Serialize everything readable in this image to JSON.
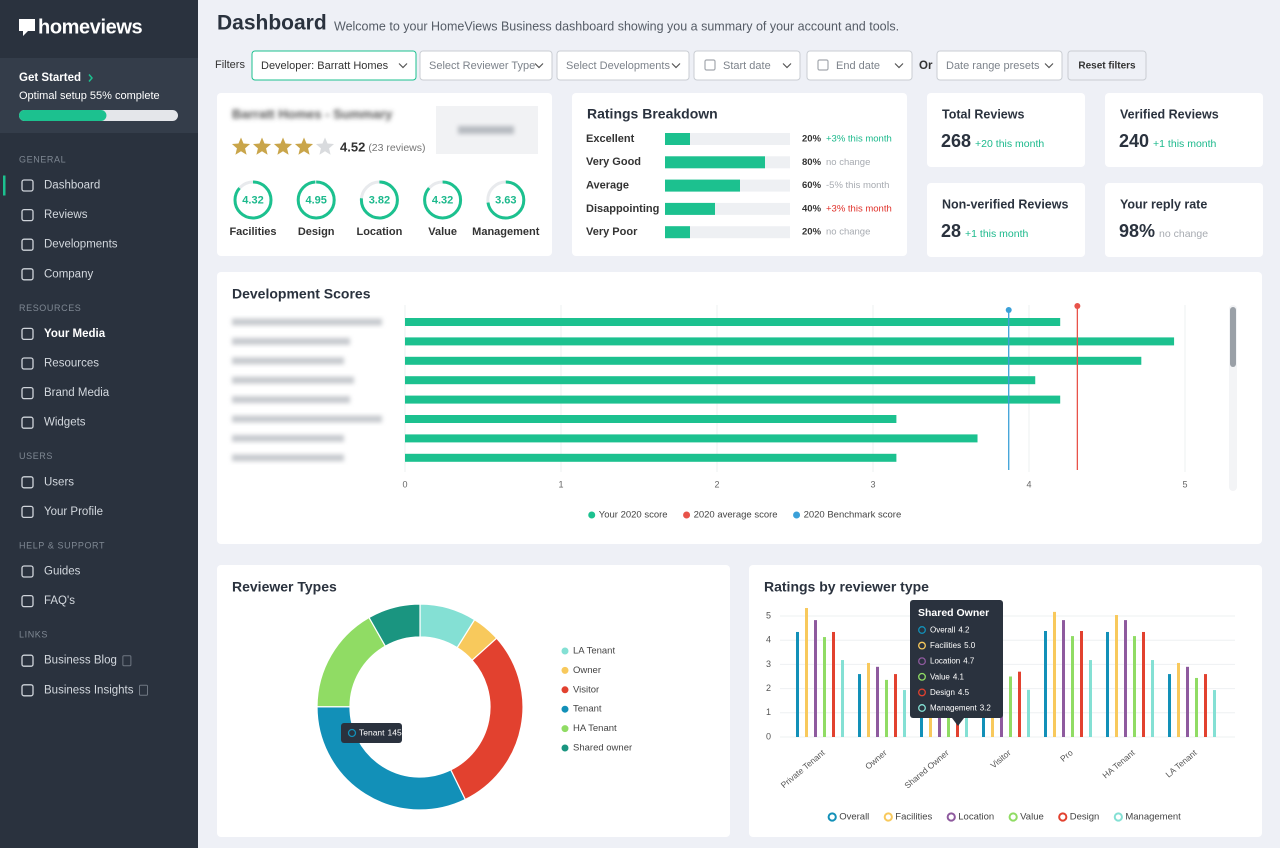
{
  "sidebar": {
    "brand": "homeviews",
    "get_started": {
      "title": "Get Started",
      "text": "Optimal setup 55% complete",
      "progress": 55
    },
    "sections": [
      {
        "title": "GENERAL",
        "items": [
          "Dashboard",
          "Reviews",
          "Developments",
          "Company"
        ]
      },
      {
        "title": "RESOURCES",
        "items": [
          "Your Media",
          "Resources",
          "Brand Media",
          "Widgets"
        ]
      },
      {
        "title": "USERS",
        "items": [
          "Users",
          "Your Profile"
        ]
      },
      {
        "title": "HELP & SUPPORT",
        "items": [
          "Guides",
          "FAQ's"
        ]
      },
      {
        "title": "LINKS",
        "items": [
          "Business Blog",
          "Business Insights"
        ]
      }
    ]
  },
  "header": {
    "title": "Dashboard",
    "subtitle": "Welcome to your HomeViews Business dashboard showing you a summary of your account and tools."
  },
  "filters": {
    "label": "Filters",
    "selects": [
      "Developer: Barratt Homes",
      "Select Reviewer Type",
      "Select Developments",
      "Start date",
      "End date"
    ],
    "or": "Or",
    "presets": "Date range presets",
    "reset": "Reset filters"
  },
  "summary": {
    "title": "Barratt Homes - Summary",
    "rating": 4.52,
    "reviews": "(23 reviews)",
    "scores": [
      {
        "label": "Facilities",
        "value": 4.32
      },
      {
        "label": "Design",
        "value": 4.95
      },
      {
        "label": "Location",
        "value": 3.82
      },
      {
        "label": "Value",
        "value": 4.32
      },
      {
        "label": "Management",
        "value": 3.63
      }
    ]
  },
  "ratings_breakdown": {
    "title": "Ratings Breakdown",
    "rows": [
      {
        "label": "Excellent",
        "value": 20,
        "value_label": "20%",
        "change": "+3% this month",
        "change_color": "#1cb98c"
      },
      {
        "label": "Very Good",
        "value": 80,
        "value_label": "80%",
        "change": "no change",
        "change_color": "#a7abb1"
      },
      {
        "label": "Average",
        "value": 60,
        "value_label": "60%",
        "change": "-5% this month",
        "change_color": "#a7abb1"
      },
      {
        "label": "Disappointing",
        "value": 40,
        "value_label": "40%",
        "change": "+3% this month",
        "change_color": "#e0312a"
      },
      {
        "label": "Very Poor",
        "value": 20,
        "value_label": "20%",
        "change": "no change",
        "change_color": "#a7abb1"
      }
    ]
  },
  "stats": [
    {
      "title": "Total Reviews",
      "value": 268,
      "change": "+20 this month",
      "change_color": "#1cb98c"
    },
    {
      "title": "Verified Reviews",
      "value": 240,
      "change": "+1 this month",
      "change_color": "#1cb98c"
    },
    {
      "title": "Non-verified Reviews",
      "value": 28,
      "change": "+1 this month",
      "change_color": "#1cb98c"
    },
    {
      "title": "Your reply rate",
      "value": "98%",
      "change": "no change",
      "change_color": "#a7abb1"
    }
  ],
  "chart_data": [
    {
      "type": "bar",
      "orientation": "horizontal",
      "title": "Development Scores",
      "categories": [
        null,
        null,
        null,
        null,
        null,
        null,
        null,
        null
      ],
      "series": [
        {
          "name": "Your 2020 score",
          "color": "#1cc18f",
          "values": [
            4.2,
            4.93,
            4.72,
            4.04,
            4.2,
            3.15,
            3.67,
            3.15
          ]
        }
      ],
      "reference_lines": [
        {
          "name": "2020 average score",
          "color": "#e8534a",
          "value": 4.31
        },
        {
          "name": "2020 Benchmark score",
          "color": "#3aa0d8",
          "value": 3.87
        }
      ],
      "xlim": [
        0,
        5.35
      ],
      "xticks": [
        0,
        1,
        2,
        3,
        4,
        5
      ],
      "grid": true
    },
    {
      "type": "pie",
      "title": "Reviewer Types",
      "categories": [
        "LA Tenant",
        "Owner",
        "Visitor",
        "Tenant",
        "HA Tenant",
        "Shared owner"
      ],
      "values": [
        40,
        20,
        132,
        145,
        75,
        37
      ],
      "value_labels": [
        null,
        null,
        null,
        "145",
        null,
        null
      ],
      "colors": [
        "#84e0d4",
        "#f8c95c",
        "#e2412f",
        "#1290b8",
        "#90dc64",
        "#1a9580"
      ]
    },
    {
      "type": "bar",
      "title": "Ratings by reviewer type",
      "categories": [
        "Private Tenant",
        "Owner",
        "Shared Owner",
        "Visitor",
        "Pro",
        "HA Tenant",
        "LA Tenant"
      ],
      "series": [
        {
          "name": "Overall",
          "color": "#1290b8",
          "values": [
            4.34,
            2.6,
            4.2,
            2.6,
            4.38,
            4.34,
            2.6
          ],
          "value_labels": [
            null,
            null,
            "4.2",
            null,
            null,
            null,
            null
          ]
        },
        {
          "name": "Facilities",
          "color": "#f8c95c",
          "values": [
            5.33,
            3.06,
            5.0,
            3.0,
            5.17,
            5.04,
            3.06
          ],
          "value_labels": [
            null,
            null,
            "5.0",
            null,
            null,
            null,
            null
          ]
        },
        {
          "name": "Location",
          "color": "#8e5a9e",
          "values": [
            4.83,
            2.9,
            4.7,
            2.9,
            4.83,
            4.83,
            2.9
          ],
          "value_labels": [
            null,
            null,
            "4.7",
            null,
            null,
            null,
            null
          ]
        },
        {
          "name": "Value",
          "color": "#90dc64",
          "values": [
            4.13,
            2.36,
            4.1,
            2.5,
            4.17,
            4.17,
            2.44
          ],
          "value_labels": [
            null,
            null,
            "4.1",
            null,
            null,
            null,
            null
          ]
        },
        {
          "name": "Design",
          "color": "#e2412f",
          "values": [
            4.34,
            2.6,
            4.5,
            2.7,
            4.38,
            4.34,
            2.6
          ],
          "value_labels": [
            null,
            null,
            "4.5",
            null,
            null,
            null,
            null
          ]
        },
        {
          "name": "Management",
          "color": "#84e0d4",
          "values": [
            3.18,
            1.94,
            3.2,
            1.95,
            3.18,
            3.18,
            1.94
          ],
          "value_labels": [
            null,
            null,
            "3.2",
            null,
            null,
            null,
            null
          ]
        }
      ],
      "ylim": [
        0,
        5.4
      ],
      "yticks": [
        0,
        1,
        2,
        3,
        4,
        5
      ],
      "grid": true
    }
  ]
}
